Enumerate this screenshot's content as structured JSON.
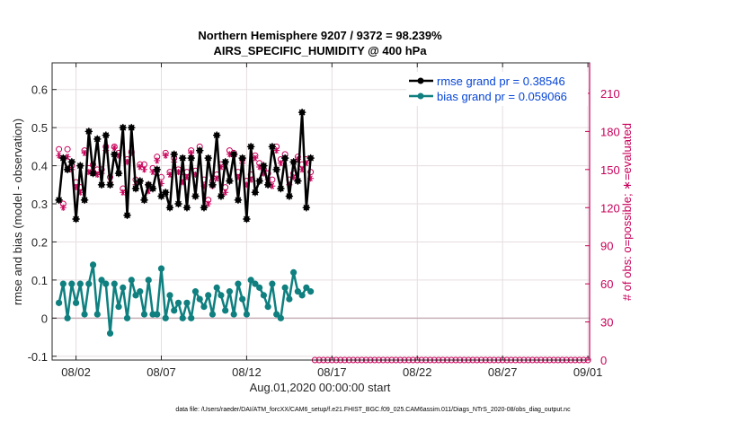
{
  "chart_data": {
    "type": "line",
    "title": "Northern Hemisphere 9207 / 9372 = 98.239%",
    "subtitle": "AIRS_SPECIFIC_HUMIDITY @ 400 hPa",
    "xlabel": "Aug.01,2020 00:00:00 start",
    "ylabel": "rmse and bias (model - observation)",
    "ylabel_right": "# of obs: o=possible; ∗=evaluated",
    "xlim": [
      0.6,
      32.1
    ],
    "ylim": [
      -0.11,
      0.67
    ],
    "ylim_right": [
      0,
      234
    ],
    "x_ticks": [
      2,
      7,
      12,
      17,
      22,
      27,
      32
    ],
    "x_tick_labels": [
      "08/02",
      "08/07",
      "08/12",
      "08/17",
      "08/22",
      "08/27",
      "09/01"
    ],
    "y_ticks": [
      -0.1,
      0,
      0.1,
      0.2,
      0.3,
      0.4,
      0.5,
      0.6
    ],
    "y_tick_labels": [
      "-0.1",
      "0",
      "0.1",
      "0.2",
      "0.3",
      "0.4",
      "0.5",
      "0.6"
    ],
    "y_right_ticks": [
      0,
      30,
      60,
      90,
      120,
      150,
      180,
      210
    ],
    "y_right_tick_labels": [
      "0",
      "30",
      "60",
      "90",
      "120",
      "150",
      "180",
      "210"
    ],
    "grid": true,
    "legend_position": "top-right",
    "footer": "data file: /Users/raeder/DAI/ATM_forcXX/CAM6_setup/f.e21.FHIST_BGC.f09_025.CAM6assim.011/Diags_NTrS_2020-08/obs_diag_output.nc",
    "colors": {
      "rmse": "#000000",
      "bias": "#0f7f7f",
      "obs_count": "#c8005a",
      "zero_line": "#c9b2ba",
      "grid": "#e6dde0"
    },
    "series": [
      {
        "name": "rmse grand pr = 0.38546",
        "axis": "left",
        "x": [
          1.0,
          1.25,
          1.5,
          1.75,
          2.0,
          2.25,
          2.5,
          2.75,
          3.0,
          3.25,
          3.5,
          3.75,
          4.0,
          4.25,
          4.5,
          4.75,
          5.0,
          5.25,
          5.5,
          5.75,
          6.0,
          6.25,
          6.5,
          6.75,
          7.0,
          7.25,
          7.5,
          7.75,
          8.0,
          8.25,
          8.5,
          8.75,
          9.0,
          9.25,
          9.5,
          9.75,
          10.0,
          10.25,
          10.5,
          10.75,
          11.0,
          11.25,
          11.5,
          11.75,
          12.0,
          12.25,
          12.5,
          12.75,
          13.0,
          13.25,
          13.5,
          13.75,
          14.0,
          14.25,
          14.5,
          14.75,
          15.0,
          15.25,
          15.5,
          15.75
        ],
        "values": [
          0.31,
          0.42,
          0.39,
          0.41,
          0.26,
          0.4,
          0.31,
          0.49,
          0.38,
          0.47,
          0.35,
          0.48,
          0.35,
          0.43,
          0.38,
          0.5,
          0.27,
          0.5,
          0.34,
          0.36,
          0.31,
          0.35,
          0.34,
          0.39,
          0.32,
          0.33,
          0.29,
          0.43,
          0.3,
          0.42,
          0.29,
          0.42,
          0.32,
          0.44,
          0.29,
          0.42,
          0.35,
          0.48,
          0.32,
          0.41,
          0.36,
          0.43,
          0.31,
          0.42,
          0.26,
          0.45,
          0.33,
          0.36,
          0.4,
          0.35,
          0.45,
          0.39,
          0.34,
          0.42,
          0.32,
          0.41,
          0.36,
          0.54,
          0.29,
          0.42
        ]
      },
      {
        "name": "bias grand pr = 0.059066",
        "axis": "left",
        "x": [
          1.0,
          1.25,
          1.5,
          1.75,
          2.0,
          2.25,
          2.5,
          2.75,
          3.0,
          3.25,
          3.5,
          3.75,
          4.0,
          4.25,
          4.5,
          4.75,
          5.0,
          5.25,
          5.5,
          5.75,
          6.0,
          6.25,
          6.5,
          6.75,
          7.0,
          7.25,
          7.5,
          7.75,
          8.0,
          8.25,
          8.5,
          8.75,
          9.0,
          9.25,
          9.5,
          9.75,
          10.0,
          10.25,
          10.5,
          10.75,
          11.0,
          11.25,
          11.5,
          11.75,
          12.0,
          12.25,
          12.5,
          12.75,
          13.0,
          13.25,
          13.5,
          13.75,
          14.0,
          14.25,
          14.5,
          14.75,
          15.0,
          15.25,
          15.5,
          15.75
        ],
        "values": [
          0.04,
          0.09,
          0.0,
          0.09,
          0.04,
          0.09,
          0.01,
          0.09,
          0.14,
          0.01,
          0.1,
          0.09,
          -0.04,
          0.09,
          0.03,
          0.08,
          0.0,
          0.1,
          0.06,
          0.07,
          0.01,
          0.1,
          0.01,
          0.01,
          0.13,
          0.0,
          0.06,
          0.02,
          0.04,
          0.0,
          0.04,
          0.0,
          0.07,
          0.05,
          0.03,
          0.06,
          0.01,
          0.08,
          0.06,
          0.02,
          0.07,
          0.01,
          0.09,
          0.05,
          0.01,
          0.1,
          0.09,
          0.08,
          0.06,
          0.03,
          0.09,
          0.01,
          0.0,
          0.08,
          0.05,
          0.12,
          0.07,
          0.06,
          0.08,
          0.07
        ]
      },
      {
        "name": "possible",
        "axis": "right",
        "marker": "circle",
        "x": [
          1.0,
          1.25,
          1.5,
          1.75,
          2.0,
          2.25,
          2.5,
          2.75,
          3.0,
          3.25,
          3.5,
          3.75,
          4.0,
          4.25,
          4.5,
          4.75,
          5.0,
          5.25,
          5.5,
          5.75,
          6.0,
          6.25,
          6.5,
          6.75,
          7.0,
          7.25,
          7.5,
          7.75,
          8.0,
          8.25,
          8.5,
          8.75,
          9.0,
          9.25,
          9.5,
          9.75,
          10.0,
          10.25,
          10.5,
          10.75,
          11.0,
          11.25,
          11.5,
          11.75,
          12.0,
          12.25,
          12.5,
          12.75,
          13.0,
          13.25,
          13.5,
          13.75,
          14.0,
          14.25,
          14.5,
          14.75,
          15.0,
          15.25,
          15.5,
          15.75
        ],
        "values": [
          166,
          123,
          166,
          153,
          140,
          136,
          165,
          151,
          154,
          150,
          150,
          168,
          144,
          168,
          163,
          135,
          158,
          164,
          142,
          154,
          154,
          138,
          151,
          160,
          144,
          163,
          148,
          159,
          150,
          144,
          148,
          165,
          149,
          168,
          142,
          126,
          141,
          146,
          154,
          136,
          165,
          163,
          148,
          158,
          141,
          146,
          161,
          155,
          150,
          147,
          142,
          168,
          158,
          162,
          142,
          147,
          160,
          154,
          158,
          148
        ]
      },
      {
        "name": "evaluated",
        "axis": "right",
        "marker": "asterisk",
        "x": [
          1.0,
          1.25,
          1.5,
          1.75,
          2.0,
          2.25,
          2.5,
          2.75,
          3.0,
          3.25,
          3.5,
          3.75,
          4.0,
          4.25,
          4.5,
          4.75,
          5.0,
          5.25,
          5.5,
          5.75,
          6.0,
          6.25,
          6.5,
          6.75,
          7.0,
          7.25,
          7.5,
          7.75,
          8.0,
          8.25,
          8.5,
          8.75,
          9.0,
          9.25,
          9.5,
          9.75,
          10.0,
          10.25,
          10.5,
          10.75,
          11.0,
          11.25,
          11.5,
          11.75,
          12.0,
          12.25,
          12.5,
          12.75,
          13.0,
          13.25,
          13.5,
          13.75,
          14.0,
          14.25,
          14.5,
          14.75,
          15.0,
          15.25,
          15.5,
          15.75
        ],
        "values": [
          161,
          120,
          160,
          150,
          136,
          132,
          163,
          148,
          149,
          146,
          147,
          165,
          140,
          167,
          161,
          132,
          156,
          163,
          138,
          152,
          150,
          133,
          148,
          157,
          139,
          161,
          146,
          156,
          148,
          140,
          144,
          163,
          146,
          165,
          137,
          123,
          137,
          143,
          152,
          132,
          162,
          161,
          144,
          155,
          138,
          142,
          159,
          152,
          147,
          142,
          137,
          165,
          155,
          159,
          138,
          144,
          158,
          150,
          155,
          143
        ]
      },
      {
        "name": "possible-zero",
        "axis": "right",
        "marker": "circle",
        "x": [
          16.0,
          16.25,
          16.5,
          16.75,
          17.0,
          17.25,
          17.5,
          17.75,
          18.0,
          18.25,
          18.5,
          18.75,
          19.0,
          19.25,
          19.5,
          19.75,
          20.0,
          20.25,
          20.5,
          20.75,
          21.0,
          21.25,
          21.5,
          21.75,
          22.0,
          22.25,
          22.5,
          22.75,
          23.0,
          23.25,
          23.5,
          23.75,
          24.0,
          24.25,
          24.5,
          24.75,
          25.0,
          25.25,
          25.5,
          25.75,
          26.0,
          26.25,
          26.5,
          26.75,
          27.0,
          27.25,
          27.5,
          27.75,
          28.0,
          28.25,
          28.5,
          28.75,
          29.0,
          29.25,
          29.5,
          29.75,
          30.0,
          30.25,
          30.5,
          30.75,
          31.0,
          31.25,
          31.5,
          31.75,
          32.0
        ],
        "values": [
          0,
          0,
          0,
          0,
          0,
          0,
          0,
          0,
          0,
          0,
          0,
          0,
          0,
          0,
          0,
          0,
          0,
          0,
          0,
          0,
          0,
          0,
          0,
          0,
          0,
          0,
          0,
          0,
          0,
          0,
          0,
          0,
          0,
          0,
          0,
          0,
          0,
          0,
          0,
          0,
          0,
          0,
          0,
          0,
          0,
          0,
          0,
          0,
          0,
          0,
          0,
          0,
          0,
          0,
          0,
          0,
          0,
          0,
          0,
          0,
          0,
          0,
          0,
          0,
          0
        ]
      }
    ]
  }
}
